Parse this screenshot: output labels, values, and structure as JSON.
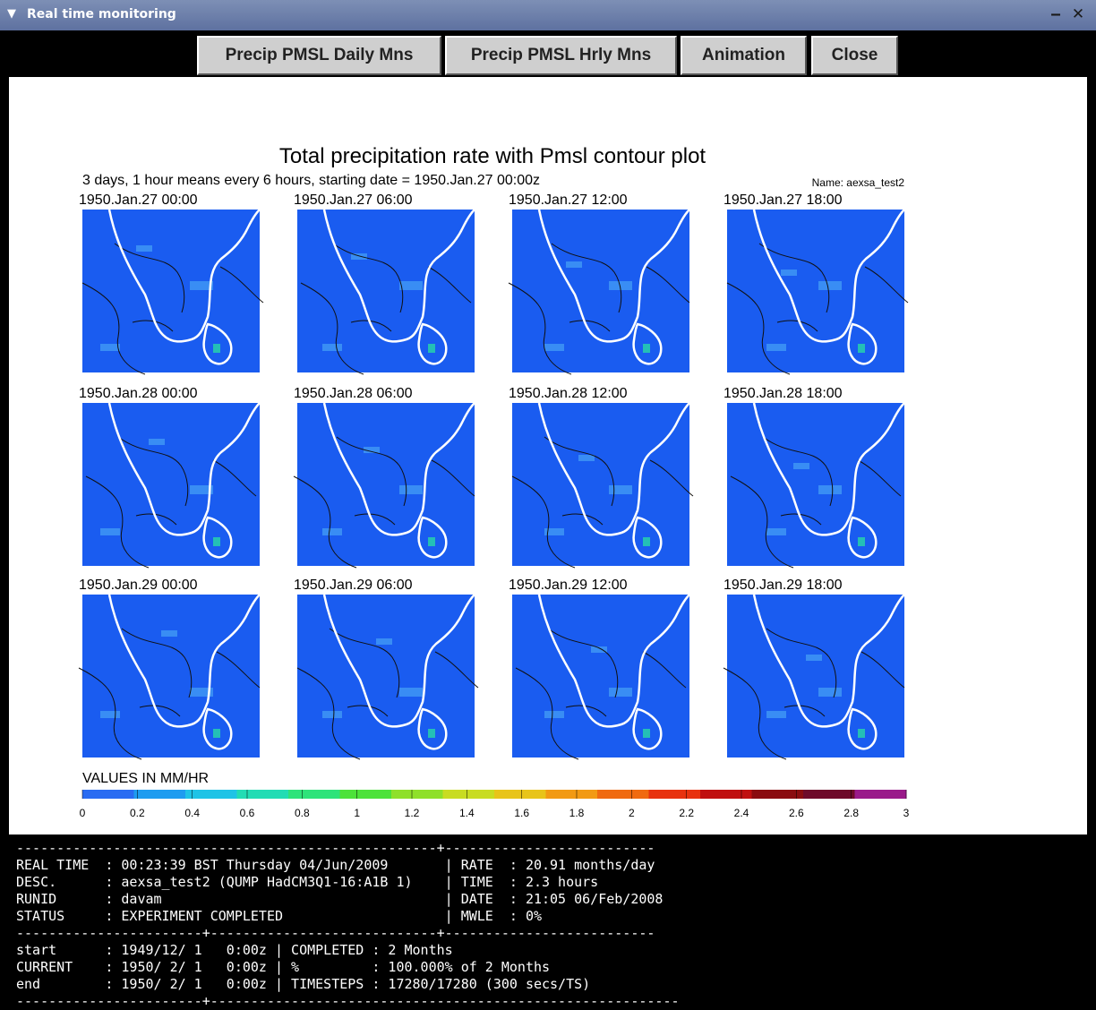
{
  "window": {
    "title": "Real time monitoring",
    "menu_glyph": "▼",
    "minimize_glyph": "‒",
    "close_glyph": "✕"
  },
  "toolbar": {
    "buttons": [
      {
        "label": "Precip PMSL Daily Mns"
      },
      {
        "label": "Precip PMSL Hrly Mns"
      },
      {
        "label": "Animation"
      },
      {
        "label": "Close"
      }
    ]
  },
  "plot": {
    "title": "Total precipitation rate with Pmsl contour plot",
    "subtitle": "3 days, 1 hour means every 6 hours, starting date = 1950.Jan.27  00:00z",
    "name_label": "Name: aexsa_test2",
    "panels": [
      "1950.Jan.27   00:00",
      "1950.Jan.27   06:00",
      "1950.Jan.27   12:00",
      "1950.Jan.27   18:00",
      "1950.Jan.28   00:00",
      "1950.Jan.28   06:00",
      "1950.Jan.28   12:00",
      "1950.Jan.28   18:00",
      "1950.Jan.29   00:00",
      "1950.Jan.29   06:00",
      "1950.Jan.29   12:00",
      "1950.Jan.29   18:00"
    ],
    "colorbar": {
      "label": "VALUES IN MM/HR",
      "ticks": [
        "0",
        "0.2",
        "0.4",
        "0.6",
        "0.8",
        "1",
        "1.2",
        "1.4",
        "1.6",
        "1.8",
        "2",
        "2.2",
        "2.4",
        "2.6",
        "2.8",
        "3"
      ],
      "colors": [
        "#2a6cf2",
        "#1e9cf0",
        "#1fc3e6",
        "#22dcb4",
        "#2ee37a",
        "#4de23a",
        "#8fe02a",
        "#c8dc22",
        "#e8c41a",
        "#f29a14",
        "#f06a10",
        "#e8320e",
        "#c01010",
        "#8a0c10",
        "#6e0a2a",
        "#9a1a8a"
      ]
    },
    "map_colors": {
      "ocean": "#1a5cf0",
      "land": "#1a5ef5",
      "coast": "#ffffff",
      "contour": "#101010",
      "precip": "#4aa8f6",
      "precip_high": "#27d8a8"
    }
  },
  "console": {
    "lines": [
      "----------------------------------------------------+--------------------------",
      "REAL TIME  : 00:23:39 BST Thursday 04/Jun/2009       | RATE  : 20.91 months/day",
      "DESC.      : aexsa_test2 (QUMP HadCM3Q1-16:A1B 1)    | TIME  : 2.3 hours",
      "RUNID      : davam                                   | DATE  : 21:05 06/Feb/2008",
      "STATUS     : EXPERIMENT COMPLETED                    | MWLE  : 0%",
      "-----------------------+----------------------------+--------------------------",
      "start      : 1949/12/ 1   0:00z | COMPLETED : 2 Months",
      "CURRENT    : 1950/ 2/ 1   0:00z | %         : 100.000% of 2 Months",
      "end        : 1950/ 2/ 1   0:00z | TIMESTEPS : 17280/17280 (300 secs/TS)",
      "-----------------------+----------------------------------------------------------"
    ]
  }
}
